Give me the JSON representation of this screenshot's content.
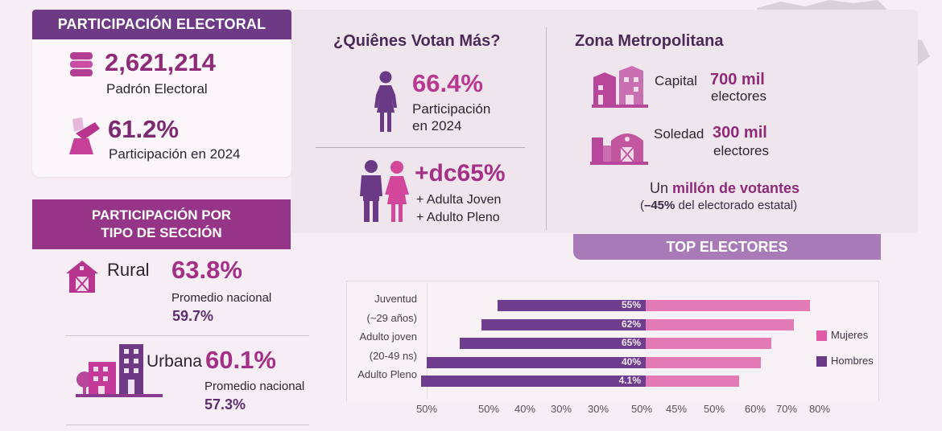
{
  "participacion": {
    "header": "PARTICIPACIÓN ELECTORAL",
    "padron_value": "2,621,214",
    "padron_label": "Padrón Electoral",
    "participacion_value": "61.2%",
    "participacion_label": "Participación en 2024",
    "icons": [
      "database-stack-icon",
      "ballot-box-icon"
    ]
  },
  "quienes": {
    "title": "¿Quiênes Votan Más?",
    "women_value": "66.4%",
    "women_label_1": "Participación",
    "women_label_2": "en 2024",
    "couple_value": "+dc65%",
    "couple_line_1": "+ Adulta Joven",
    "couple_line_2": "+ Adulto Pleno"
  },
  "zona": {
    "title": "Zona Metropolitana",
    "capital_label": "Capital",
    "capital_value": "700 mil",
    "capital_unit": "electores",
    "soledad_label": "Soledad",
    "soledad_value": "300 mil",
    "soledad_unit": "electores",
    "summary_pre": "Un",
    "summary_bold": "millón de votantes",
    "summary_note_pre": "(",
    "summary_note_bold": "–45%",
    "summary_note_post": " del electorado estatal)"
  },
  "seccion": {
    "header_line_1": "PARTICIPACIÓN POR",
    "header_line_2": "TIPO DE SECCIÓN",
    "rural_label": "Rural",
    "rural_value": "63.8%",
    "rural_avg_label": "Promedio nacional",
    "rural_avg_value": "59.7%",
    "urbana_label": "Urbana",
    "urbana_value": "60.1%",
    "urbana_avg_label": "Promedio nacional",
    "urbana_avg_value": "57.3%"
  },
  "colors": {
    "dark_purple": "#6e3a86",
    "magenta": "#963587",
    "value_magenta": "#8e2a78",
    "hombres": "#6e3d8e",
    "mujeres": "#e27ab5",
    "top_header": "#a87bb8"
  },
  "chart_data": {
    "type": "bar",
    "orientation": "horizontal-stacked",
    "title": "TOP ELECTORES",
    "category_labels": [
      "Juventud",
      "(~29 años)",
      "Adulto joven",
      "(20-49 ns)",
      "Adulto Pleno"
    ],
    "series": [
      {
        "name": "Hombres",
        "color": "#6e3d8e",
        "extent": [
          -27,
          -30,
          -34,
          -40,
          -41
        ],
        "labels": [
          "55%",
          "62%",
          "65%",
          "40%",
          "4.1%"
        ]
      },
      {
        "name": "Mujeres",
        "color": "#e27ab5",
        "extent": [
          30,
          27,
          23,
          21,
          17
        ]
      }
    ],
    "x_tick_labels": [
      "50%",
      "50%",
      "40%",
      "30%",
      "30%",
      "50%",
      "45%",
      "50%",
      "60%",
      "70%",
      "80%"
    ],
    "legend": [
      "Mujeres",
      "Hombres"
    ],
    "legend_position": "right"
  }
}
